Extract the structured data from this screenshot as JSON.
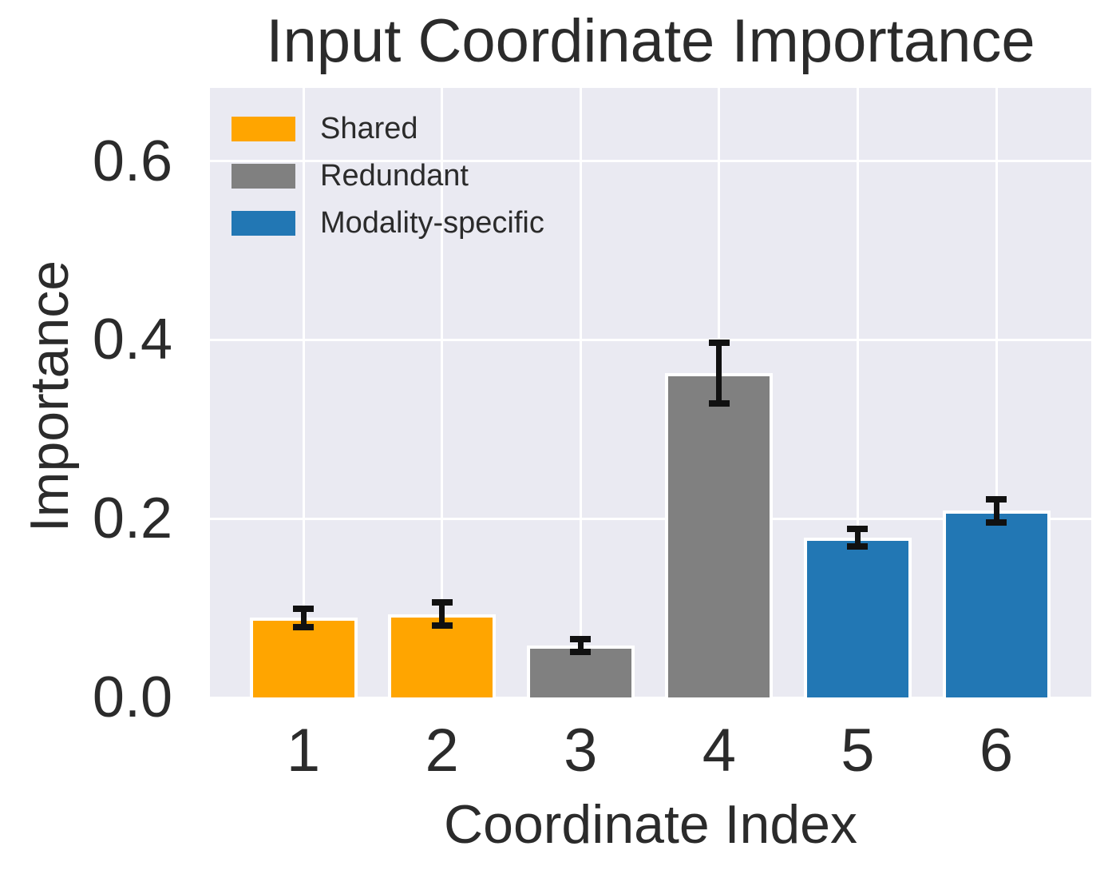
{
  "chart_data": {
    "type": "bar",
    "title": "Input Coordinate Importance",
    "xlabel": "Coordinate Index",
    "ylabel": "Importance",
    "categories": [
      "1",
      "2",
      "3",
      "4",
      "5",
      "6"
    ],
    "values": [
      0.089,
      0.093,
      0.058,
      0.363,
      0.179,
      0.209
    ],
    "errors": [
      0.01,
      0.013,
      0.007,
      0.034,
      0.01,
      0.013
    ],
    "bar_groups": [
      "Shared",
      "Shared",
      "Redundant",
      "Redundant",
      "Modality-specific",
      "Modality-specific"
    ],
    "bar_colors": [
      "#FFA500",
      "#FFA500",
      "#808080",
      "#808080",
      "#2277B4",
      "#2277B4"
    ],
    "legend": [
      {
        "label": "Shared",
        "color": "#FFA500"
      },
      {
        "label": "Redundant",
        "color": "#808080"
      },
      {
        "label": "Modality-specific",
        "color": "#2277B4"
      }
    ],
    "legend_position": "upper left",
    "yticks": [
      0.0,
      0.2,
      0.4,
      0.6
    ],
    "ytick_labels": [
      "0.0",
      "0.2",
      "0.4",
      "0.6"
    ],
    "ylim": [
      0,
      0.682
    ],
    "grid": true,
    "colors": {
      "plot_background": "#EAEAF2",
      "figure_background": "#ffffff",
      "grid_line": "#ffffff",
      "error_bar": "#111111",
      "text": "#2b2b2b"
    }
  }
}
